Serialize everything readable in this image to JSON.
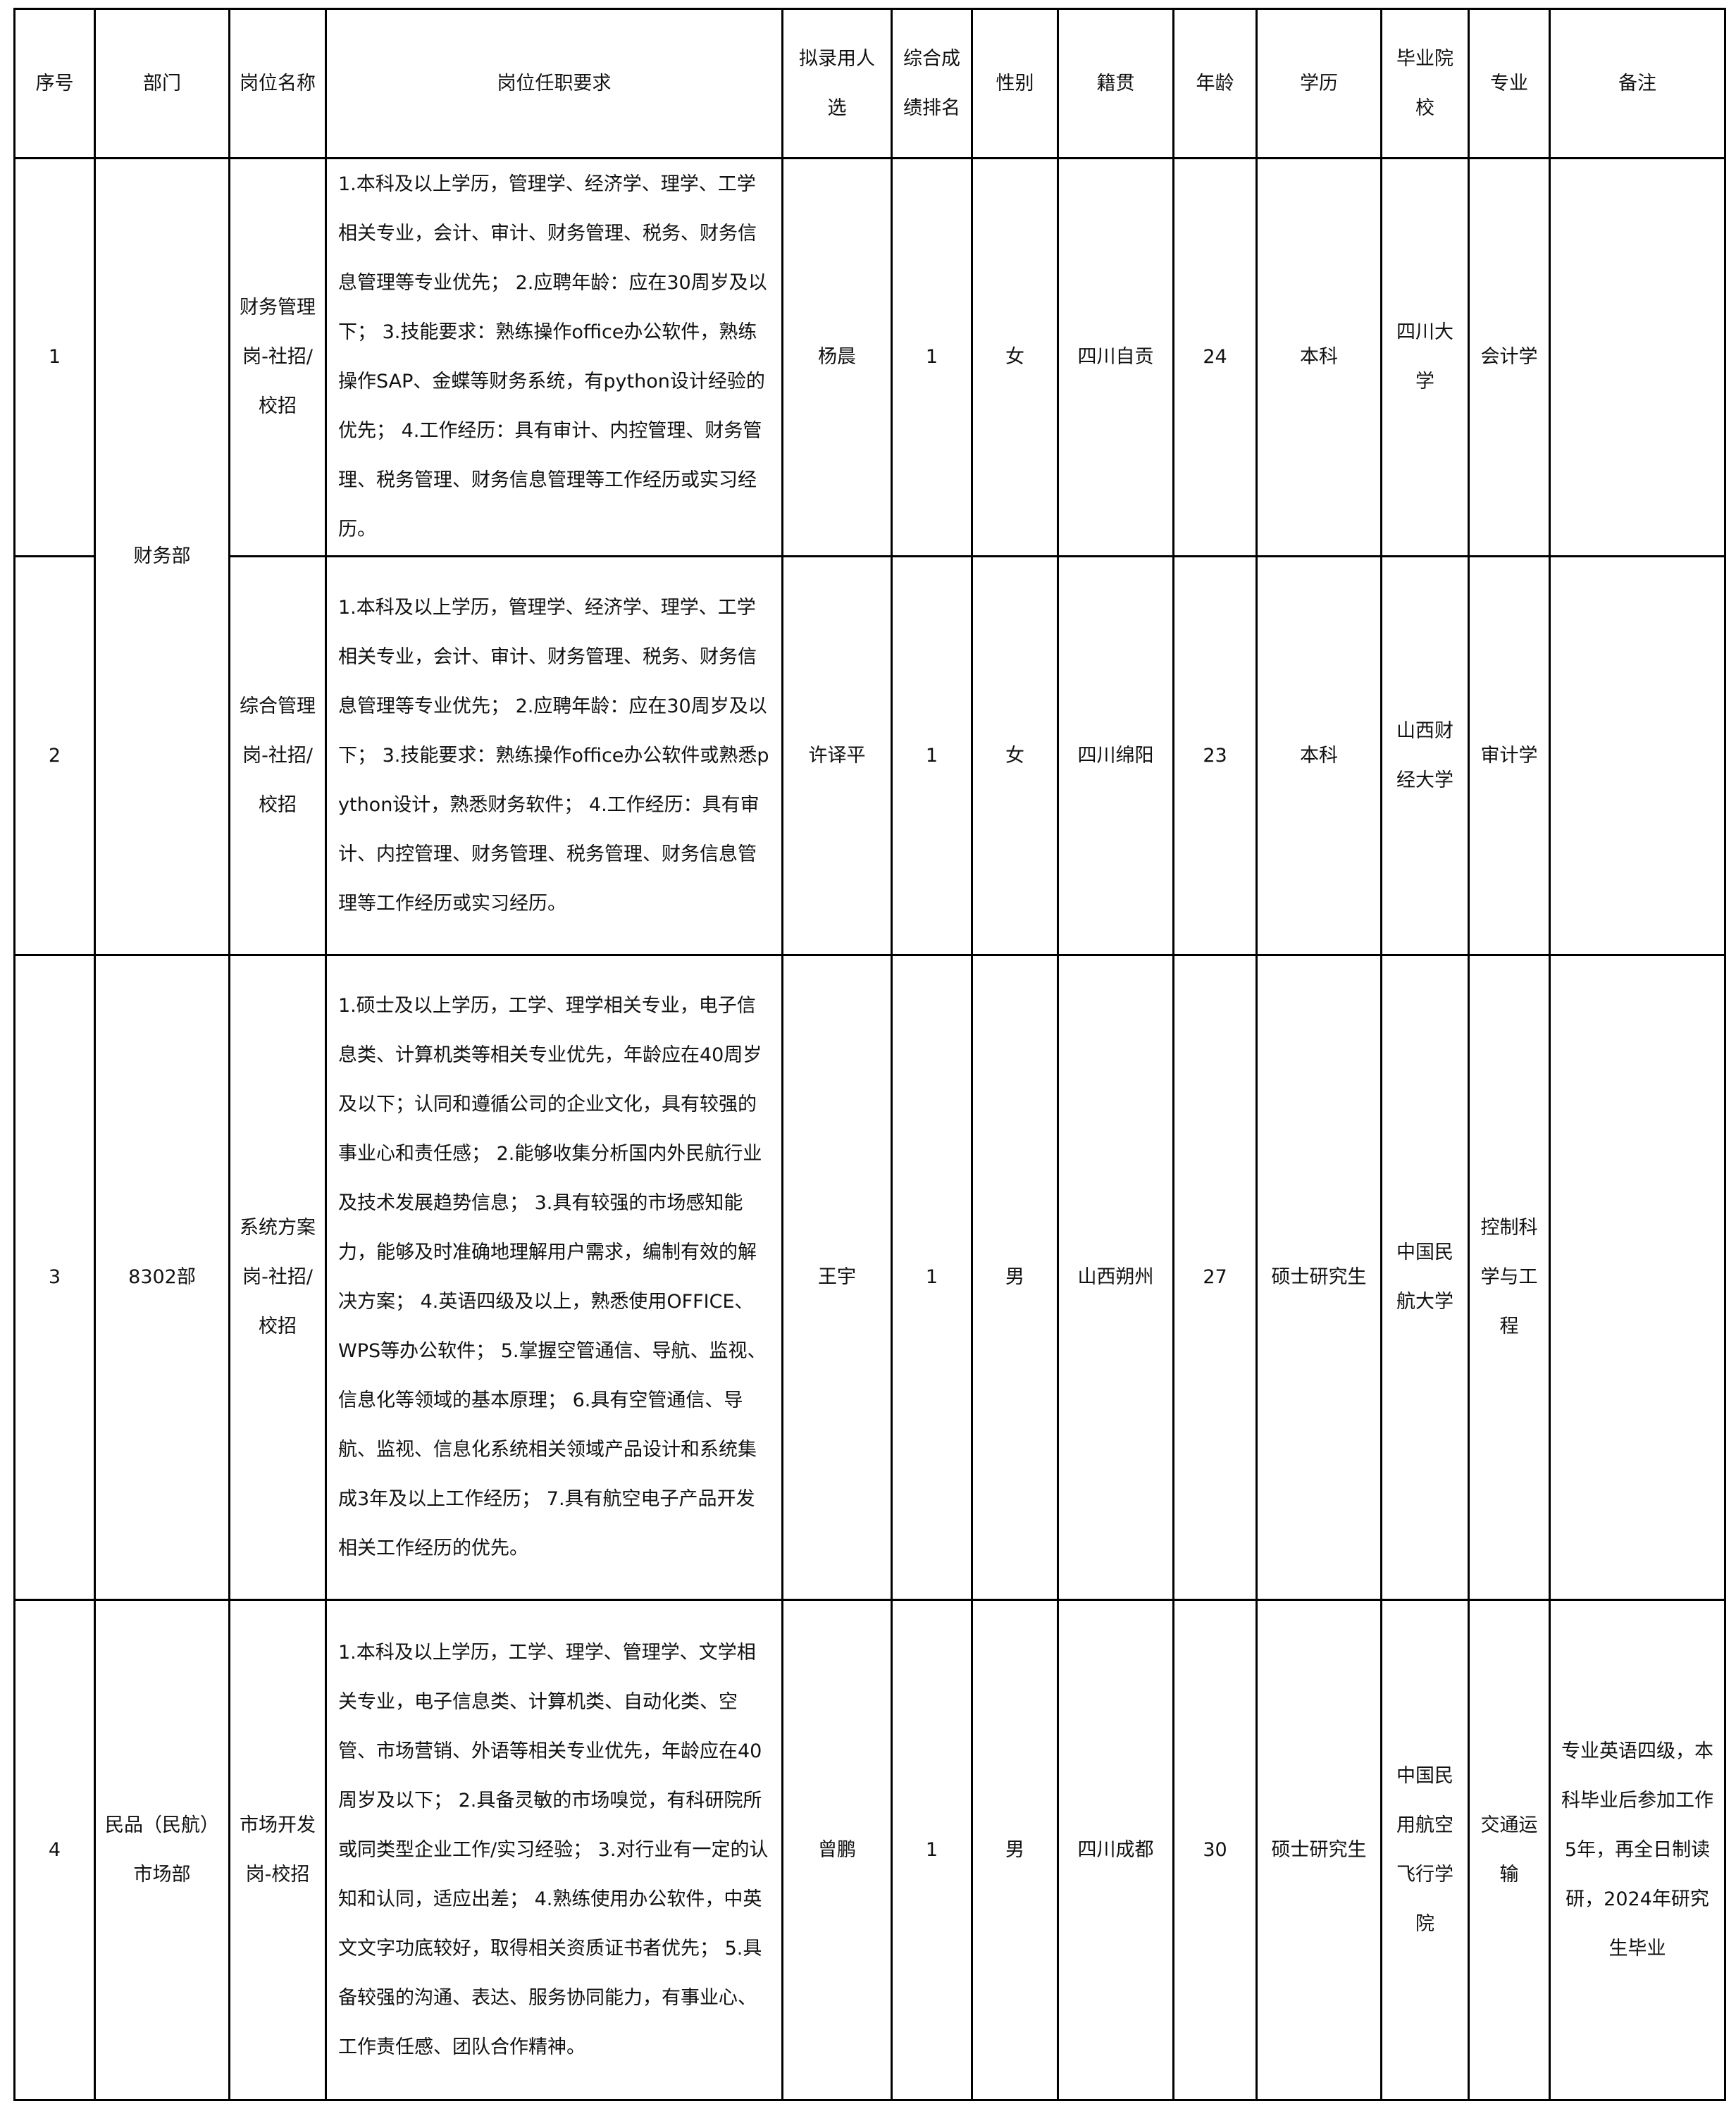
{
  "headers": [
    "序号",
    "部门",
    "岗位名称",
    "岗位任职要求",
    "拟录用人选",
    "综合成绩排名",
    "性别",
    "籍贯",
    "年龄",
    "学历",
    "毕业院校",
    "专业",
    "备注"
  ],
  "rows": [
    {
      "no": "1",
      "dept": "财务部",
      "position": "财务管理岗-社招/校招",
      "requirements": "1.本科及以上学历，管理学、经济学、理学、工学相关专业，会计、审计、财务管理、税务、财务信息管理等专业优先； 2.应聘年龄：应在30周岁及以下； 3.技能要求：熟练操作office办公软件，熟练操作SAP、金蝶等财务系统，有python设计经验的优先； 4.工作经历：具有审计、内控管理、财务管理、税务管理、财务信息管理等工作经历或实习经历。",
      "candidate": "杨晨",
      "rank": "1",
      "gender": "女",
      "origin": "四川自贡",
      "age": "24",
      "education": "本科",
      "school": "四川大学",
      "major": "会计学",
      "remark": ""
    },
    {
      "no": "2",
      "position": "综合管理岗-社招/校招",
      "requirements": "1.本科及以上学历，管理学、经济学、理学、工学相关专业，会计、审计、财务管理、税务、财务信息管理等专业优先； 2.应聘年龄：应在30周岁及以下； 3.技能要求：熟练操作office办公软件或熟悉python设计，熟悉财务软件； 4.工作经历：具有审计、内控管理、财务管理、税务管理、财务信息管理等工作经历或实习经历。",
      "candidate": "许译平",
      "rank": "1",
      "gender": "女",
      "origin": "四川绵阳",
      "age": "23",
      "education": "本科",
      "school": "山西财经大学",
      "major": "审计学",
      "remark": ""
    },
    {
      "no": "3",
      "dept": "8302部",
      "position": "系统方案岗-社招/校招",
      "requirements": "1.硕士及以上学历，工学、理学相关专业，电子信息类、计算机类等相关专业优先，年龄应在40周岁及以下；认同和遵循公司的企业文化，具有较强的事业心和责任感； 2.能够收集分析国内外民航行业及技术发展趋势信息； 3.具有较强的市场感知能力，能够及时准确地理解用户需求，编制有效的解决方案； 4.英语四级及以上，熟悉使用OFFICE、WPS等办公软件； 5.掌握空管通信、导航、监视、信息化等领域的基本原理； 6.具有空管通信、导航、监视、信息化系统相关领域产品设计和系统集成3年及以上工作经历； 7.具有航空电子产品开发相关工作经历的优先。",
      "candidate": "王宇",
      "rank": "1",
      "gender": "男",
      "origin": "山西朔州",
      "age": "27",
      "education": "硕士研究生",
      "school": "中国民航大学",
      "major": "控制科学与工程",
      "remark": ""
    },
    {
      "no": "4",
      "dept": "民品（民航）市场部",
      "position": "市场开发岗-校招",
      "requirements": "1.本科及以上学历，工学、理学、管理学、文学相关专业，电子信息类、计算机类、自动化类、空管、市场营销、外语等相关专业优先，年龄应在40周岁及以下； 2.具备灵敏的市场嗅觉，有科研院所或同类型企业工作/实习经验； 3.对行业有一定的认知和认同，适应出差； 4.熟练使用办公软件，中英文文字功底较好，取得相关资质证书者优先； 5.具备较强的沟通、表达、服务协同能力，有事业心、工作责任感、团队合作精神。",
      "candidate": "曾鹏",
      "rank": "1",
      "gender": "男",
      "origin": "四川成都",
      "age": "30",
      "education": "硕士研究生",
      "school": "中国民用航空飞行学院",
      "major": "交通运输",
      "remark": "专业英语四级，本科毕业后参加工作5年，再全日制读研，2024年研究生毕业"
    }
  ]
}
